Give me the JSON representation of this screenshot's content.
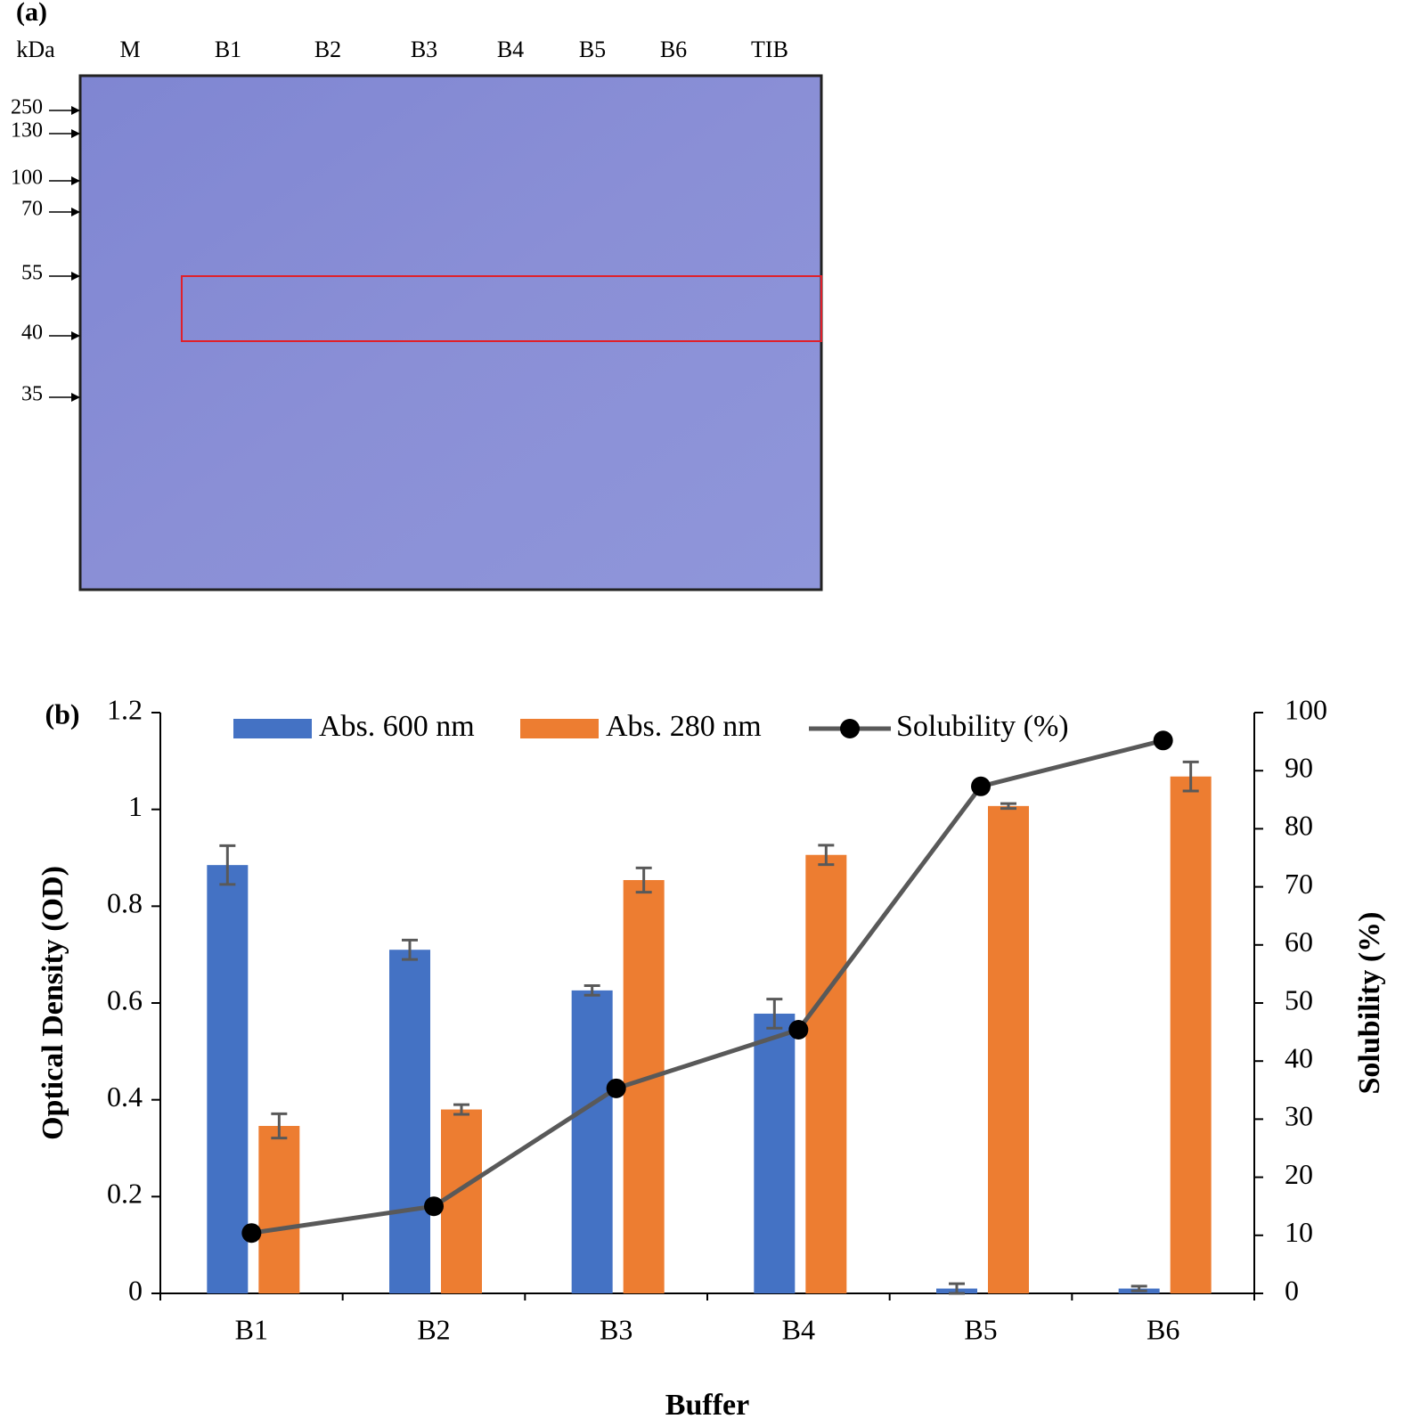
{
  "panel_a": {
    "label": "(a)",
    "unit_label": "kDa",
    "lanes": [
      "M",
      "B1",
      "B2",
      "B3",
      "B4",
      "B5",
      "B6",
      "TIB"
    ],
    "markers": [
      "250",
      "130",
      "100",
      "70",
      "55",
      "40",
      "35"
    ]
  },
  "chart_data": {
    "type": "bar",
    "panel_label": "(b)",
    "x_label": "Buffer",
    "y_label": "Optical Density (OD)",
    "y2_label": "Solubility  (%)",
    "categories": [
      "B1",
      "B2",
      "B3",
      "B4",
      "B5",
      "B6"
    ],
    "series": [
      {
        "name": "Abs. 600 nm",
        "color": "#4472c4",
        "values": [
          0.885,
          0.71,
          0.626,
          0.578,
          0.01,
          0.01
        ],
        "errors": [
          0.04,
          0.02,
          0.01,
          0.03,
          0.01,
          0.005
        ]
      },
      {
        "name": "Abs. 280 nm",
        "color": "#ed7d31",
        "values": [
          0.346,
          0.38,
          0.854,
          0.906,
          1.007,
          1.068
        ],
        "errors": [
          0.025,
          0.01,
          0.025,
          0.02,
          0.005,
          0.03
        ]
      },
      {
        "name": "Solubility (%)",
        "type": "line",
        "axis": "y2",
        "color": "#595959",
        "values": [
          10.4,
          15,
          35.3,
          45.4,
          87.3,
          95.2
        ]
      }
    ],
    "ylim": [
      0,
      1.2
    ],
    "yticks": [
      0,
      0.2,
      0.4,
      0.6,
      0.8,
      1,
      1.2
    ],
    "y2lim": [
      0,
      100
    ],
    "y2ticks": [
      0,
      10,
      20,
      30,
      40,
      50,
      60,
      70,
      80,
      90,
      100
    ],
    "legend": "top",
    "grid": false
  }
}
